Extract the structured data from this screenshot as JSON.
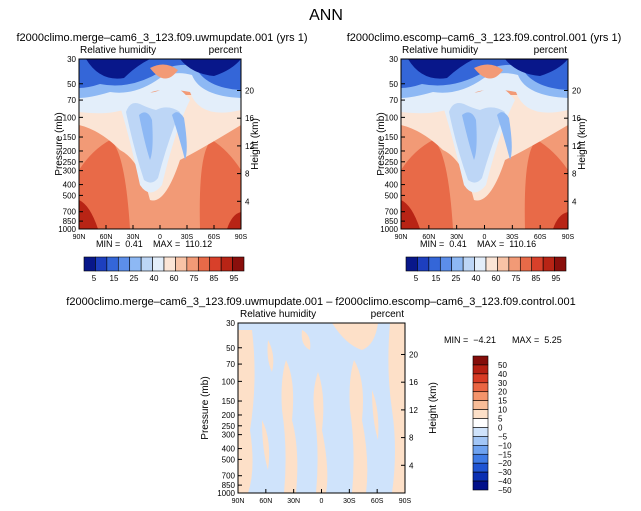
{
  "page_title": "ANN",
  "panels": [
    {
      "title": "f2000climo.merge–cam6_3_123.f09.uwmupdate.001  (yrs 1)",
      "left_label": "Relative humidity",
      "right_label": "percent",
      "ylabel": "Pressure (mb)",
      "y2label": "Height (km)",
      "min_label": "MIN =",
      "min_value": "0.41",
      "max_label": "MAX =",
      "max_value": "110.12"
    },
    {
      "title": "f2000climo.escomp–cam6_3_123.f09.control.001  (yrs 1)",
      "left_label": "Relative humidity",
      "right_label": "percent",
      "ylabel": "Pressure (mb)",
      "y2label": "Height (km)",
      "min_label": "MIN =",
      "min_value": "0.41",
      "max_label": "MAX =",
      "max_value": "110.16"
    },
    {
      "title": "f2000climo.merge–cam6_3_123.f09.uwmupdate.001  –  f2000climo.escomp–cam6_3_123.f09.control.001",
      "left_label": "Relative humidity",
      "right_label": "percent",
      "ylabel": "Pressure (mb)",
      "y2label": "Height (km)",
      "min_label": "MIN =",
      "min_value": "−4.21",
      "max_label": "MAX =",
      "max_value": "5.25"
    }
  ],
  "chart_data": [
    {
      "type": "heatmap",
      "title": "f2000climo.merge–cam6_3_123.f09.uwmupdate.001  (yrs 1)",
      "xlabel": "",
      "ylabel": "Pressure (mb)",
      "y2label": "Height (km)",
      "x_ticks": [
        "90N",
        "60N",
        "30N",
        "0",
        "30S",
        "60S",
        "90S"
      ],
      "y_ticks": [
        "30",
        "50",
        "70",
        "100",
        "150",
        "200",
        "250",
        "300",
        "400",
        "500",
        "700",
        "850",
        "1000"
      ],
      "y_range": [
        1000,
        30
      ],
      "y_scale": "log",
      "y2_ticks": [
        "20",
        "16",
        "12",
        "8",
        "4"
      ],
      "colorbar_levels": [
        "5",
        "15",
        "25",
        "40",
        "60",
        "75",
        "85",
        "95"
      ],
      "min": 0.41,
      "max": 110.12
    },
    {
      "type": "heatmap",
      "title": "f2000climo.escomp–cam6_3_123.f09.control.001  (yrs 1)",
      "xlabel": "",
      "ylabel": "Pressure (mb)",
      "y2label": "Height (km)",
      "x_ticks": [
        "90N",
        "60N",
        "30N",
        "0",
        "30S",
        "60S",
        "90S"
      ],
      "y_ticks": [
        "30",
        "50",
        "70",
        "100",
        "150",
        "200",
        "250",
        "300",
        "400",
        "500",
        "700",
        "850",
        "1000"
      ],
      "y_range": [
        1000,
        30
      ],
      "y_scale": "log",
      "y2_ticks": [
        "20",
        "16",
        "12",
        "8",
        "4"
      ],
      "colorbar_levels": [
        "5",
        "15",
        "25",
        "40",
        "60",
        "75",
        "85",
        "95"
      ],
      "min": 0.41,
      "max": 110.16
    },
    {
      "type": "heatmap",
      "title": "f2000climo.merge–cam6_3_123.f09.uwmupdate.001  –  f2000climo.escomp–cam6_3_123.f09.control.001",
      "xlabel": "",
      "ylabel": "Pressure (mb)",
      "y2label": "Height (km)",
      "x_ticks": [
        "90N",
        "60N",
        "30N",
        "0",
        "30S",
        "60S",
        "90S"
      ],
      "y_ticks": [
        "30",
        "50",
        "70",
        "100",
        "150",
        "200",
        "250",
        "300",
        "400",
        "500",
        "700",
        "850",
        "1000"
      ],
      "y_range": [
        1000,
        30
      ],
      "y_scale": "log",
      "y2_ticks": [
        "20",
        "16",
        "12",
        "8",
        "4"
      ],
      "colorbar_levels": [
        "50",
        "40",
        "30",
        "20",
        "15",
        "10",
        "5",
        "0",
        "−5",
        "−10",
        "−15",
        "−20",
        "−30",
        "−40",
        "−50"
      ],
      "min": -4.21,
      "max": 5.25
    }
  ],
  "colors": {
    "abs_palette": [
      "#08178a",
      "#1d3fbf",
      "#3466d8",
      "#5c8eea",
      "#8db8f4",
      "#bdd6f6",
      "#e3eefa",
      "#fbe5d6",
      "#f8c3a6",
      "#f29a76",
      "#e86a48",
      "#d8402a",
      "#b82415",
      "#8a0f0c"
    ],
    "diff_palette": [
      "#02118a",
      "#0a2fb2",
      "#1f54d3",
      "#3f7be6",
      "#6ea2f0",
      "#a2c6f6",
      "#cfe3fb",
      "#ffffff",
      "#fde0c8",
      "#f9bd98",
      "#f4946b",
      "#ea6542",
      "#d83b24",
      "#b51f12",
      "#840d0a"
    ]
  }
}
